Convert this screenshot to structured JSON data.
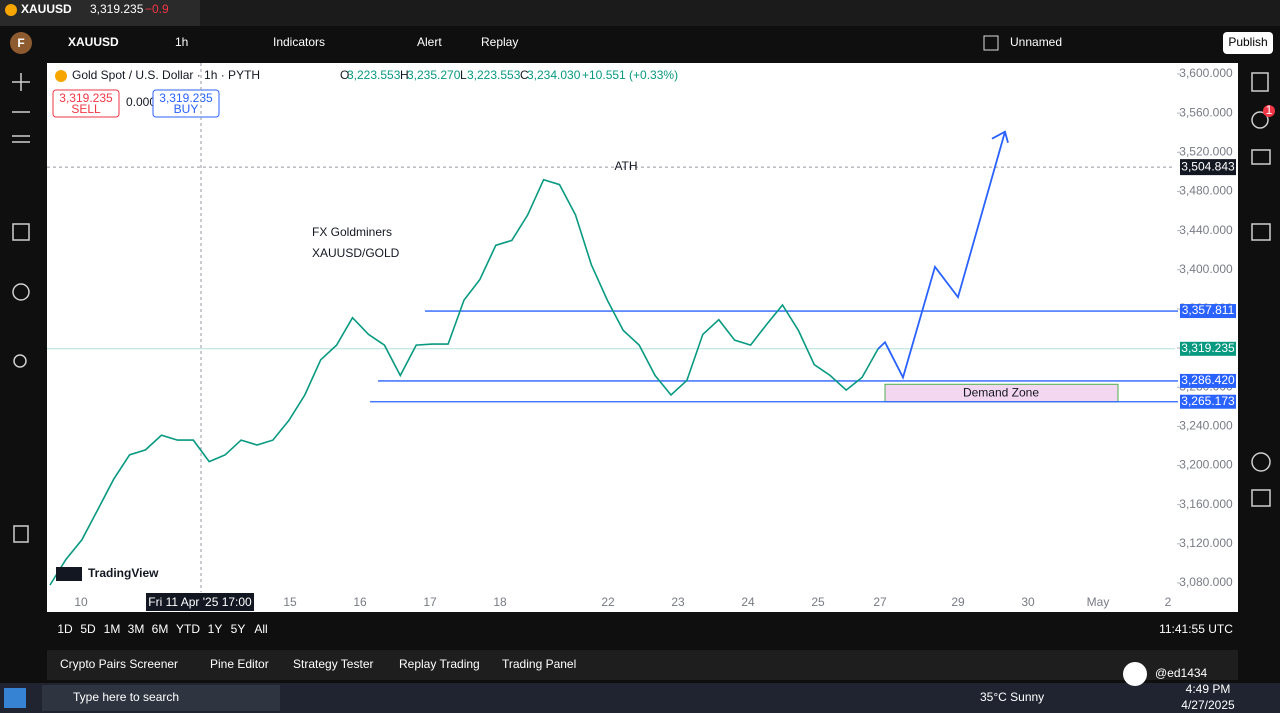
{
  "tab": {
    "symbol": "XAUUSD",
    "price": "3,319.235",
    "change": "−0.9"
  },
  "toolbar": {
    "avatar": "F",
    "symbol": "XAUUSD",
    "interval": "1h",
    "indicators": "Indicators",
    "alert": "Alert",
    "replay": "Replay",
    "layout": "Unnamed",
    "publish": "Publish"
  },
  "legend": {
    "title": "Gold Spot / U.S. Dollar · 1h · PYTH",
    "ohlc": [
      {
        "key": "O",
        "value": "3,223.553"
      },
      {
        "key": "H",
        "value": "3,235.270"
      },
      {
        "key": "L",
        "value": "3,223.553"
      },
      {
        "key": "C",
        "value": "3,234.030"
      }
    ],
    "change": "+10.551 (+0.33%)"
  },
  "sell": {
    "price": "3,319.235",
    "label": "SELL"
  },
  "spread": "0.000",
  "buy": {
    "price": "3,319.235",
    "label": "BUY"
  },
  "chart_data": {
    "type": "line",
    "annotations": [
      "ATH",
      "FX Goldminers",
      "XAUUSD/GOLD"
    ],
    "watermark": "TradingView",
    "series": [
      {
        "name": "XAUUSD",
        "color": "#089981",
        "values": [
          3078,
          3104,
          3124,
          3155,
          3186,
          3211,
          3216,
          3231,
          3226,
          3226,
          3204,
          3211,
          3226,
          3221,
          3226,
          3246,
          3272,
          3308,
          3323,
          3351,
          3334,
          3323,
          3292,
          3323,
          3324,
          3324,
          3369,
          3390,
          3425,
          3430,
          3456,
          3492,
          3487,
          3456,
          3405,
          3369,
          3338,
          3323,
          3292,
          3272,
          3287,
          3334,
          3349,
          3328,
          3323,
          3344,
          3364,
          3338,
          3303,
          3292,
          3277,
          3290,
          3319
        ]
      }
    ],
    "projection": {
      "color": "#2962ff",
      "values": [
        3319,
        3326,
        3290,
        3403,
        3372,
        3541
      ]
    },
    "levels": [
      {
        "value": 3357.811,
        "label": "3,357.811"
      },
      {
        "value": 3286.42,
        "label": "3,286.420"
      },
      {
        "value": 3265.173,
        "label": "3,265.173"
      }
    ],
    "last_price": {
      "value": 3319.235,
      "label": "3,319.235"
    },
    "crosshair_price": {
      "value": 3504.843,
      "label": "3,504.843"
    },
    "crosshair_time": "Fri 11 Apr '25   17:00",
    "demand_zone": {
      "label": "Demand Zone",
      "range": [
        3265,
        3283
      ]
    },
    "xlabels": [
      "10",
      "15",
      "16",
      "17",
      "18",
      "22",
      "23",
      "24",
      "25",
      "27",
      "29",
      "30",
      "May",
      "2"
    ],
    "ylim": [
      3070.8,
      3611.2
    ],
    "yticks": [
      {
        "value": 3080,
        "label": "3,080.000"
      },
      {
        "value": 3120,
        "label": "3,120.000"
      },
      {
        "value": 3160,
        "label": "3,160.000"
      },
      {
        "value": 3200,
        "label": "3,200.000"
      },
      {
        "value": 3240,
        "label": "3,240.000"
      },
      {
        "value": 3280,
        "label": "3,280.000"
      },
      {
        "value": 3320,
        "label": "3,320.000"
      },
      {
        "value": 3360,
        "label": "3,360.000"
      },
      {
        "value": 3400,
        "label": "3,400.000"
      },
      {
        "value": 3440,
        "label": "3,440.000"
      },
      {
        "value": 3480,
        "label": "3,480.000"
      },
      {
        "value": 3520,
        "label": "3,520.000"
      },
      {
        "value": 3560,
        "label": "3,560.000"
      },
      {
        "value": 3600,
        "label": "3,600.000"
      }
    ]
  },
  "ranges": [
    "1D",
    "5D",
    "1M",
    "3M",
    "6M",
    "YTD",
    "1Y",
    "5Y",
    "All"
  ],
  "clock": "11:41:55 UTC",
  "panels": [
    "Crypto Pairs Screener",
    "Pine Editor",
    "Strategy Tester",
    "Replay Trading",
    "Trading Panel"
  ],
  "notification_badge": "1",
  "overlay": "@ed1434",
  "taskbar": {
    "search": "Type here to search",
    "weather": "35°C  Sunny",
    "time": "4:49 PM",
    "date": "4/27/2025"
  }
}
